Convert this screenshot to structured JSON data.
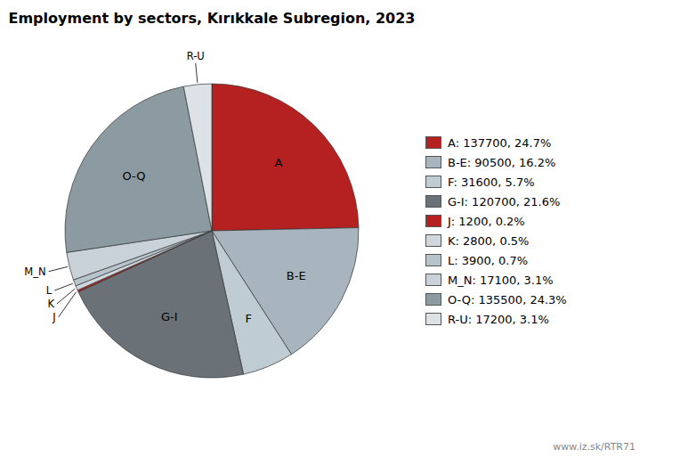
{
  "chart_data": {
    "type": "pie",
    "title": "Employment by sectors, Kırıkkale Subregion, 2023",
    "categories": [
      "A",
      "B-E",
      "F",
      "G-I",
      "J",
      "K",
      "L",
      "M_N",
      "O-Q",
      "R-U"
    ],
    "values": [
      137700,
      90500,
      31600,
      120700,
      1200,
      2800,
      3900,
      17100,
      135500,
      17200
    ],
    "colors": [
      "#b52020",
      "#a8b4be",
      "#c0ccd4",
      "#6a7278",
      "#b52020",
      "#d0d8de",
      "#b8c4cc",
      "#c8d2d8",
      "#8c9aa2",
      "#dce2e6"
    ],
    "legend_labels": [
      "A: 137700, 24.7%",
      "B-E: 90500, 16.2%",
      "F: 31600, 5.7%",
      "G-I: 120700, 21.6%",
      "J: 1200, 0.2%",
      "K: 2800, 0.5%",
      "L: 3900, 0.7%",
      "M_N: 17100, 3.1%",
      "O-Q: 135500, 24.3%",
      "R-U: 17200, 3.1%"
    ],
    "legend": "right",
    "annotations": [
      "www.iz.sk/RTR71"
    ]
  }
}
